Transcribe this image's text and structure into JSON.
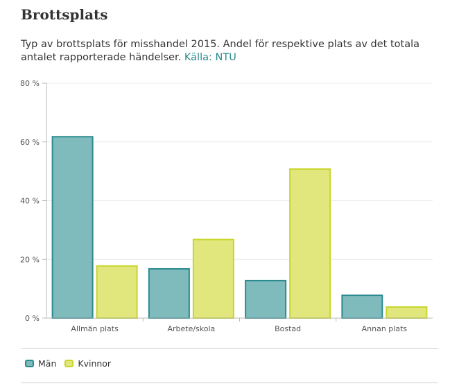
{
  "page": {
    "title": "Brottsplats",
    "subtitle_text": "Typ av brottsplats för misshandel 2015. Andel för respektive plats av det totala antalet rapporterade händelser.",
    "source_label": "Källa: NTU"
  },
  "chart_data": {
    "type": "bar",
    "categories": [
      "Allmän plats",
      "Arbete/skola",
      "Bostad",
      "Annan plats"
    ],
    "series": [
      {
        "name": "Män",
        "values": [
          62,
          17,
          13,
          8
        ],
        "color": "#7fbbbd",
        "border": "#2a8a8e"
      },
      {
        "name": "Kvinnor",
        "values": [
          18,
          27,
          51,
          4
        ],
        "color": "#e1e77c",
        "border": "#c8d62c"
      }
    ],
    "y_ticks": [
      0,
      20,
      40,
      60,
      80
    ],
    "y_tick_labels": [
      "0 %",
      "20 %",
      "40 %",
      "60 %",
      "80 %"
    ],
    "ylim": [
      0,
      80
    ],
    "grid": true,
    "legend_position": "bottom-left"
  }
}
